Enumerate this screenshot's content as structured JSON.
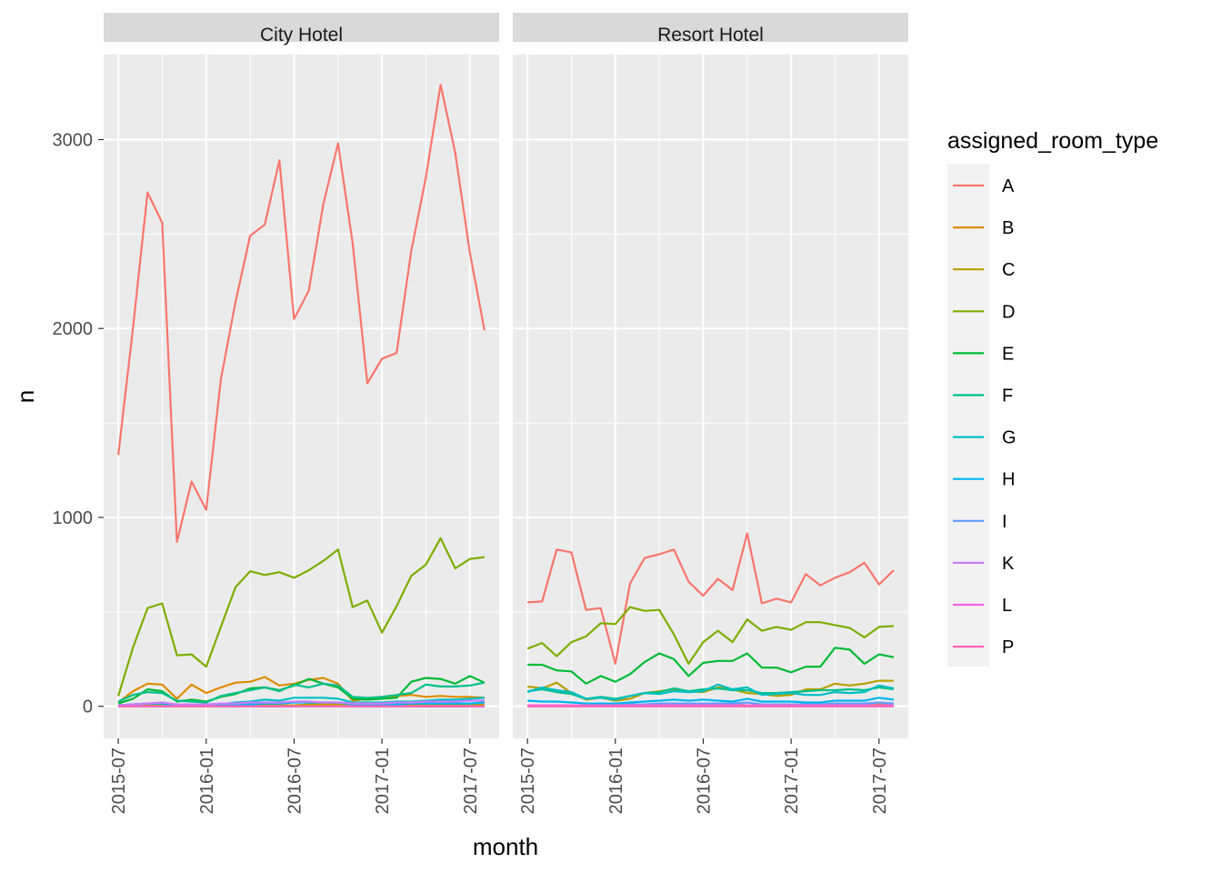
{
  "chart_data": {
    "type": "line",
    "xlabel": "month",
    "ylabel": "n",
    "legend_title": "assigned_room_type",
    "legend_position": "right",
    "grid": true,
    "ylim": [
      -170,
      3450
    ],
    "xlim": [
      "2015-06",
      "2017-09"
    ],
    "y_ticks": [
      0,
      1000,
      2000,
      3000
    ],
    "x_ticks": [
      "2015-07",
      "2016-01",
      "2016-07",
      "2017-01",
      "2017-07"
    ],
    "months": [
      "2015-07",
      "2015-08",
      "2015-09",
      "2015-10",
      "2015-11",
      "2015-12",
      "2016-01",
      "2016-02",
      "2016-03",
      "2016-04",
      "2016-05",
      "2016-06",
      "2016-07",
      "2016-08",
      "2016-09",
      "2016-10",
      "2016-11",
      "2016-12",
      "2017-01",
      "2017-02",
      "2017-03",
      "2017-04",
      "2017-05",
      "2017-06",
      "2017-07",
      "2017-08"
    ],
    "series_colors": {
      "A": "#F8766D",
      "B": "#DE8C00",
      "C": "#B79F00",
      "D": "#7CAE00",
      "E": "#00BA38",
      "F": "#00C08B",
      "G": "#00BFC4",
      "H": "#00B4F0",
      "I": "#619CFF",
      "K": "#C77CFF",
      "L": "#F564E3",
      "P": "#FF64B0"
    },
    "panels": [
      {
        "name": "City Hotel",
        "series": [
          {
            "name": "A",
            "values": [
              1330,
              2000,
              2720,
              2560,
              870,
              1190,
              1040,
              1730,
              2140,
              2490,
              2550,
              2890,
              2050,
              2200,
              2660,
              2980,
              2450,
              1710,
              1840,
              1870,
              2410,
              2800,
              3290,
              2930,
              2400,
              1990
            ]
          },
          {
            "name": "B",
            "values": [
              20,
              80,
              120,
              115,
              40,
              115,
              70,
              100,
              125,
              130,
              155,
              110,
              120,
              140,
              150,
              120,
              30,
              40,
              50,
              55,
              60,
              50,
              55,
              50,
              50,
              45
            ]
          },
          {
            "name": "C",
            "values": [
              5,
              5,
              10,
              10,
              5,
              5,
              5,
              5,
              5,
              5,
              5,
              5,
              5,
              10,
              10,
              10,
              5,
              5,
              10,
              10,
              10,
              10,
              10,
              10,
              10,
              10
            ]
          },
          {
            "name": "D",
            "values": [
              55,
              310,
              520,
              545,
              270,
              275,
              210,
              420,
              630,
              715,
              695,
              710,
              680,
              720,
              770,
              830,
              525,
              560,
              390,
              530,
              690,
              750,
              890,
              730,
              780,
              790
            ]
          },
          {
            "name": "E",
            "values": [
              15,
              40,
              90,
              80,
              25,
              35,
              25,
              50,
              65,
              95,
              100,
              85,
              110,
              145,
              120,
              100,
              40,
              35,
              40,
              45,
              130,
              150,
              145,
              120,
              160,
              125
            ]
          },
          {
            "name": "F",
            "values": [
              25,
              60,
              75,
              70,
              30,
              25,
              20,
              55,
              70,
              85,
              100,
              80,
              115,
              100,
              120,
              110,
              50,
              45,
              50,
              60,
              70,
              115,
              105,
              105,
              110,
              125
            ]
          },
          {
            "name": "G",
            "values": [
              5,
              10,
              15,
              15,
              5,
              10,
              5,
              10,
              20,
              25,
              35,
              30,
              45,
              45,
              45,
              40,
              20,
              20,
              20,
              25,
              25,
              30,
              35,
              35,
              40,
              45
            ]
          },
          {
            "name": "H",
            "values": [
              5,
              10,
              15,
              15,
              5,
              5,
              5,
              10,
              10,
              10,
              15,
              15,
              20,
              20,
              20,
              20,
              10,
              10,
              10,
              10,
              15,
              15,
              15,
              15,
              15,
              20
            ]
          },
          {
            "name": "I",
            "values": [
              0,
              0,
              0,
              0,
              0,
              0,
              0,
              0,
              0,
              0,
              0,
              0,
              0,
              0,
              0,
              0,
              0,
              0,
              0,
              0,
              0,
              0,
              0,
              0,
              0,
              0
            ]
          },
          {
            "name": "K",
            "values": [
              5,
              10,
              15,
              20,
              10,
              10,
              10,
              15,
              15,
              20,
              20,
              20,
              25,
              25,
              20,
              20,
              15,
              15,
              15,
              20,
              20,
              25,
              25,
              25,
              30,
              30
            ]
          },
          {
            "name": "L",
            "values": [
              0,
              0,
              0,
              0,
              0,
              0,
              0,
              0,
              0,
              0,
              0,
              0,
              0,
              0,
              0,
              0,
              0,
              0,
              0,
              0,
              0,
              0,
              0,
              0,
              0,
              0
            ]
          },
          {
            "name": "P",
            "values": [
              0,
              0,
              0,
              0,
              0,
              0,
              0,
              0,
              0,
              0,
              0,
              0,
              0,
              0,
              0,
              0,
              0,
              0,
              0,
              0,
              0,
              0,
              0,
              0,
              0,
              0
            ]
          }
        ]
      },
      {
        "name": "Resort Hotel",
        "series": [
          {
            "name": "A",
            "values": [
              550,
              555,
              830,
              815,
              510,
              520,
              225,
              650,
              785,
              805,
              830,
              660,
              585,
              675,
              615,
              915,
              545,
              570,
              550,
              700,
              640,
              680,
              710,
              760,
              645,
              720
            ]
          },
          {
            "name": "B",
            "values": [
              5,
              5,
              5,
              5,
              5,
              5,
              5,
              5,
              5,
              10,
              15,
              10,
              10,
              10,
              10,
              5,
              5,
              5,
              5,
              10,
              10,
              10,
              10,
              10,
              15,
              15
            ]
          },
          {
            "name": "C",
            "values": [
              105,
              95,
              125,
              70,
              35,
              45,
              30,
              40,
              70,
              80,
              90,
              80,
              75,
              100,
              90,
              70,
              65,
              55,
              60,
              90,
              90,
              120,
              110,
              120,
              135,
              135
            ]
          },
          {
            "name": "D",
            "values": [
              305,
              335,
              265,
              340,
              370,
              440,
              435,
              525,
              505,
              510,
              380,
              225,
              340,
              400,
              340,
              460,
              400,
              420,
              405,
              445,
              445,
              430,
              415,
              365,
              420,
              425
            ]
          },
          {
            "name": "E",
            "values": [
              220,
              220,
              190,
              185,
              120,
              160,
              130,
              170,
              235,
              280,
              250,
              160,
              230,
              240,
              240,
              280,
              205,
              205,
              180,
              210,
              210,
              310,
              300,
              225,
              275,
              260
            ]
          },
          {
            "name": "F",
            "values": [
              80,
              90,
              75,
              65,
              40,
              50,
              40,
              55,
              70,
              75,
              95,
              80,
              90,
              95,
              85,
              85,
              70,
              70,
              75,
              80,
              85,
              85,
              90,
              85,
              100,
              90
            ]
          },
          {
            "name": "G",
            "values": [
              75,
              100,
              85,
              75,
              40,
              45,
              35,
              55,
              70,
              65,
              80,
              75,
              80,
              115,
              90,
              100,
              60,
              65,
              70,
              60,
              60,
              75,
              70,
              75,
              110,
              95
            ]
          },
          {
            "name": "H",
            "values": [
              30,
              25,
              25,
              20,
              15,
              15,
              15,
              20,
              25,
              30,
              35,
              30,
              35,
              30,
              25,
              40,
              25,
              25,
              25,
              20,
              20,
              30,
              30,
              30,
              45,
              35
            ]
          },
          {
            "name": "I",
            "values": [
              5,
              5,
              5,
              5,
              5,
              5,
              5,
              10,
              10,
              15,
              15,
              15,
              15,
              15,
              15,
              20,
              10,
              10,
              10,
              10,
              10,
              15,
              15,
              15,
              20,
              15
            ]
          },
          {
            "name": "K",
            "values": [
              0,
              0,
              0,
              0,
              0,
              0,
              0,
              0,
              0,
              0,
              0,
              0,
              0,
              0,
              0,
              0,
              0,
              0,
              0,
              0,
              0,
              0,
              0,
              0,
              0,
              0
            ]
          },
          {
            "name": "L",
            "values": [
              5,
              5,
              5,
              5,
              5,
              5,
              5,
              5,
              5,
              5,
              5,
              5,
              5,
              5,
              5,
              5,
              5,
              5,
              5,
              5,
              5,
              5,
              5,
              5,
              5,
              5
            ]
          },
          {
            "name": "P",
            "values": [
              0,
              0,
              0,
              0,
              0,
              0,
              0,
              0,
              0,
              0,
              0,
              0,
              0,
              0,
              0,
              0,
              0,
              0,
              0,
              0,
              0,
              0,
              0,
              0,
              0,
              0
            ]
          }
        ]
      }
    ]
  }
}
